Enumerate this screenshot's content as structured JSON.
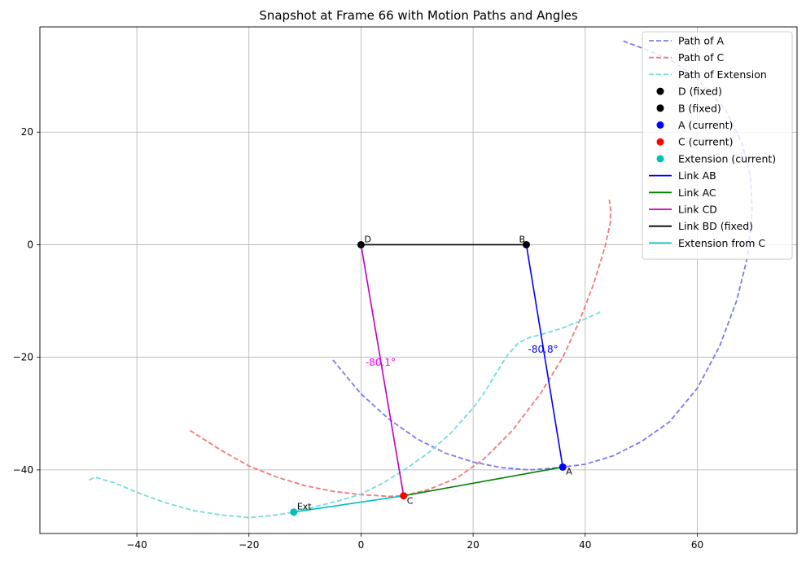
{
  "chart_data": {
    "type": "line",
    "title": "Snapshot at Frame 66 with Motion Paths and Angles",
    "xlabel": "",
    "ylabel": "",
    "xlim": [
      -57.3,
      77.8
    ],
    "ylim": [
      -51.3,
      38.7
    ],
    "xticks": [
      -40,
      -20,
      0,
      20,
      40,
      60
    ],
    "yticks": [
      -40,
      -20,
      0,
      20
    ],
    "grid": true,
    "legend_position": "top-right",
    "paths": [
      {
        "name": "Path of A",
        "color": "#7b7bf2",
        "style": "dashed",
        "x": [
          -5,
          0,
          5,
          10,
          15,
          20,
          25,
          30,
          33,
          36,
          40,
          45,
          50,
          55,
          60,
          64,
          67,
          69,
          69.8,
          69.5,
          68,
          65,
          60,
          55,
          50,
          46.5
        ],
        "y": [
          -20.5,
          -26.5,
          -31,
          -34.5,
          -37,
          -38.6,
          -39.6,
          -40,
          -39.8,
          -39.5,
          -39,
          -37.5,
          -35,
          -31.5,
          -25.5,
          -18,
          -10,
          -2,
          6,
          12,
          18,
          24,
          29.5,
          33,
          35,
          36.3
        ]
      },
      {
        "name": "Path of C",
        "color": "#f07a7a",
        "style": "dashed",
        "x": [
          -30.5,
          -25,
          -20,
          -15,
          -10,
          -5,
          0,
          5,
          7.6,
          12,
          17,
          22,
          27,
          32,
          36,
          39,
          41.5,
          43.5,
          44.5,
          44.5,
          44.3
        ],
        "y": [
          -33,
          -36.5,
          -39.3,
          -41.3,
          -42.8,
          -43.8,
          -44.4,
          -44.7,
          -44.6,
          -43.5,
          -41.5,
          -38,
          -33,
          -26.5,
          -20,
          -13.5,
          -7,
          -0.5,
          4,
          6.5,
          8
        ]
      },
      {
        "name": "Path of Extension",
        "color": "#77dbdb",
        "style": "dashed",
        "x": [
          -48.5,
          -47.5,
          -44,
          -40,
          -35,
          -30,
          -25,
          -20,
          -15,
          -12,
          -8,
          -4,
          0,
          4,
          8,
          12,
          16,
          20,
          22,
          24,
          26,
          28,
          30,
          32,
          36,
          40,
          43
        ],
        "y": [
          -41.8,
          -41.3,
          -42.3,
          -44,
          -45.8,
          -47.2,
          -48,
          -48.5,
          -48,
          -47.5,
          -46.5,
          -45.5,
          -44.3,
          -42.3,
          -39.8,
          -37,
          -33.5,
          -29,
          -26.3,
          -23,
          -19.8,
          -17.5,
          -16.5,
          -16,
          -14.8,
          -13.2,
          -11.8
        ]
      }
    ],
    "points": [
      {
        "name": "D (fixed)",
        "label": "D",
        "x": 0,
        "y": 0,
        "color": "#000000"
      },
      {
        "name": "B (fixed)",
        "label": "B",
        "x": 29.5,
        "y": 0,
        "color": "#000000"
      },
      {
        "name": "A (current)",
        "label": "A",
        "x": 36,
        "y": -39.5,
        "color": "#0000ff"
      },
      {
        "name": "C (current)",
        "label": "C",
        "x": 7.6,
        "y": -44.6,
        "color": "#ff0000"
      },
      {
        "name": "Extension (current)",
        "label": "Ext",
        "x": -12,
        "y": -47.5,
        "color": "#00bfbf"
      }
    ],
    "links": [
      {
        "name": "Link AB",
        "from": [
          36,
          -39.5
        ],
        "to": [
          29.5,
          0
        ],
        "color": "#0000ff"
      },
      {
        "name": "Link AC",
        "from": [
          36,
          -39.5
        ],
        "to": [
          7.6,
          -44.6
        ],
        "color": "#008000"
      },
      {
        "name": "Link CD",
        "from": [
          7.6,
          -44.6
        ],
        "to": [
          0,
          0
        ],
        "color": "#bf00bf"
      },
      {
        "name": "Link BD (fixed)",
        "from": [
          0,
          0
        ],
        "to": [
          29.5,
          0
        ],
        "color": "#000000"
      },
      {
        "name": "Extension from C",
        "from": [
          7.6,
          -44.6
        ],
        "to": [
          -12,
          -47.5
        ],
        "color": "#00bfbf"
      }
    ],
    "angle_annotations": [
      {
        "text": "-80.1°",
        "x": 0.8,
        "y": -21.5,
        "color": "#ff00ff"
      },
      {
        "text": "-80.8°",
        "x": 29.8,
        "y": -19.2,
        "color": "#0000ff"
      }
    ],
    "legend": [
      {
        "label": "Path of A",
        "kind": "dashed",
        "color": "#7b7bf2"
      },
      {
        "label": "Path of C",
        "kind": "dashed",
        "color": "#f07a7a"
      },
      {
        "label": "Path of Extension",
        "kind": "dashed",
        "color": "#77dbdb"
      },
      {
        "label": "D (fixed)",
        "kind": "marker",
        "color": "#000000"
      },
      {
        "label": "B (fixed)",
        "kind": "marker",
        "color": "#000000"
      },
      {
        "label": "A (current)",
        "kind": "marker",
        "color": "#0000ff"
      },
      {
        "label": "C (current)",
        "kind": "marker",
        "color": "#ff0000"
      },
      {
        "label": "Extension (current)",
        "kind": "marker",
        "color": "#00bfbf"
      },
      {
        "label": "Link AB",
        "kind": "line",
        "color": "#0000ff"
      },
      {
        "label": "Link AC",
        "kind": "line",
        "color": "#008000"
      },
      {
        "label": "Link CD",
        "kind": "line",
        "color": "#bf00bf"
      },
      {
        "label": "Link BD (fixed)",
        "kind": "line",
        "color": "#000000"
      },
      {
        "label": "Extension from C",
        "kind": "line",
        "color": "#00bfbf"
      }
    ]
  }
}
